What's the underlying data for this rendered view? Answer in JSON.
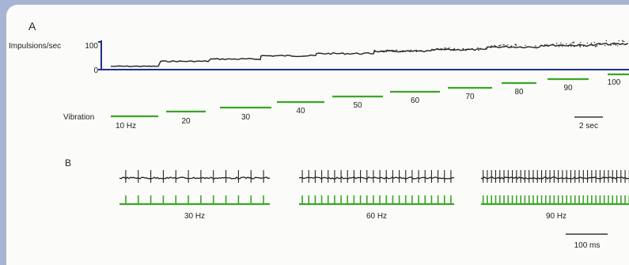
{
  "chart_data": [
    {
      "panel": "A",
      "type": "line",
      "ylabel": "Impulsions/sec",
      "y_ticks": [
        "100",
        "0"
      ],
      "stimulus_label": "Vibration",
      "steps": [
        "10 Hz",
        "20",
        "30",
        "40",
        "50",
        "60",
        "70",
        "80",
        "90",
        "100"
      ],
      "firing_rate": [
        12,
        30,
        38,
        50,
        58,
        66,
        72,
        82,
        88,
        92
      ],
      "scale_bar": "2 sec"
    },
    {
      "panel": "B",
      "type": "line",
      "recordings": [
        {
          "label": "30 Hz",
          "spikes": 12
        },
        {
          "label": "60 Hz",
          "spikes": 24
        },
        {
          "label": "90 Hz",
          "spikes": 36
        }
      ],
      "scale_bar": "100 ms"
    }
  ],
  "colors": {
    "trace": "#222222",
    "axis": "#1f2f8a",
    "stimulus": "#3aa526",
    "frame_bg": "#fbfbf9",
    "page_bg": "#a8b4d4"
  }
}
